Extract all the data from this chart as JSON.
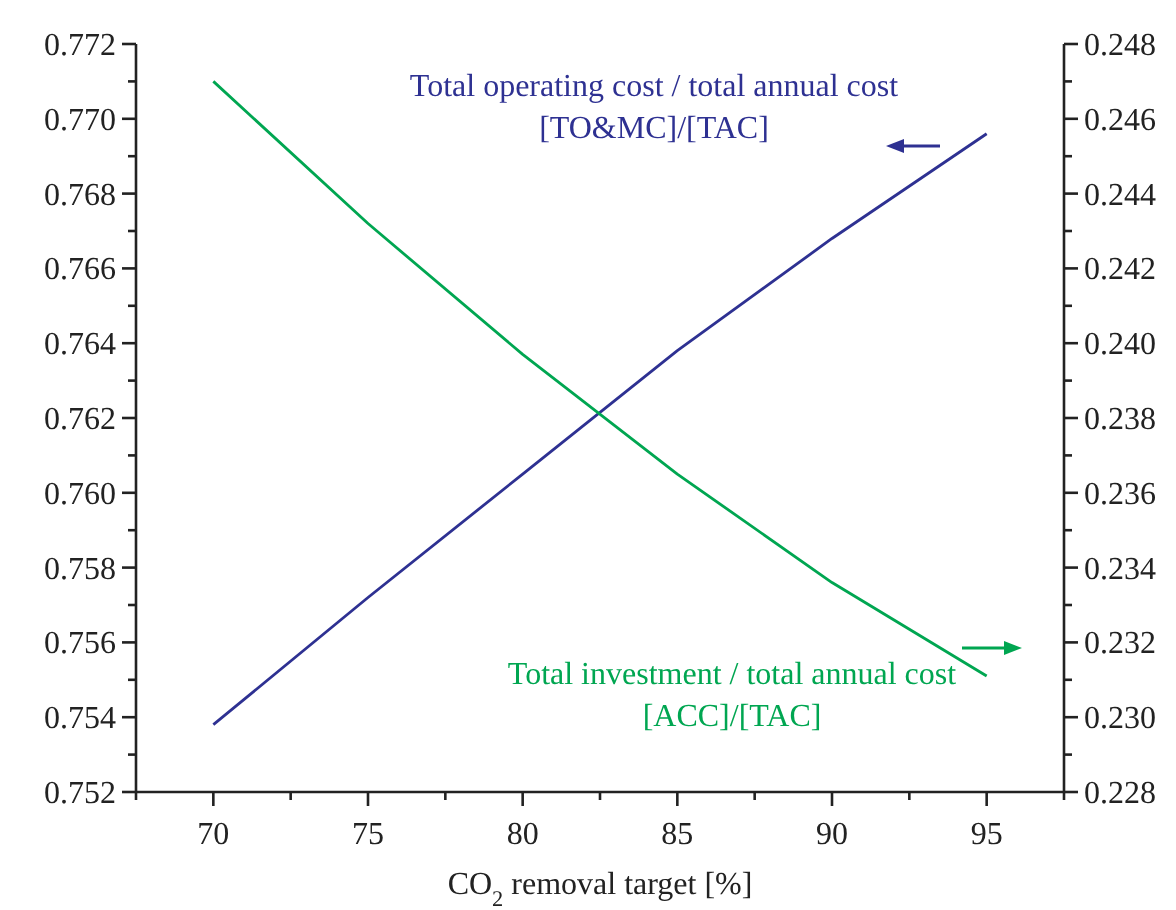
{
  "chart_data": {
    "type": "line",
    "xlabel": "CO$_{2}$ removal target [%]",
    "x": [
      70,
      75,
      80,
      85,
      90,
      95
    ],
    "series": [
      {
        "color": "#2e3192",
        "values": [
          0.7538,
          0.7572,
          0.7605,
          0.7638,
          0.7668,
          0.7696
        ]
      },
      {
        "color": "#00a651",
        "axis": "y2",
        "values": [
          0.247,
          0.2432,
          0.2397,
          0.2365,
          0.2336,
          0.2311
        ]
      }
    ],
    "xlim": [
      67.5,
      97.5
    ],
    "xticks": [
      {
        "value": 67.5,
        "label": null
      },
      70,
      {
        "value": 72.5,
        "label": null
      },
      75,
      {
        "value": 77.5,
        "label": null
      },
      80,
      {
        "value": 82.5,
        "label": null
      },
      85,
      {
        "value": 87.5,
        "label": null
      },
      90,
      {
        "value": 92.5,
        "label": null
      },
      95,
      {
        "value": 97.5,
        "label": null
      }
    ],
    "ylim": [
      0.752,
      0.772
    ],
    "yticks": [
      {
        "value": 0.752,
        "label": "0.752"
      },
      {
        "value": 0.753,
        "label": null
      },
      {
        "value": 0.754,
        "label": "0.754"
      },
      {
        "value": 0.755,
        "label": null
      },
      {
        "value": 0.756,
        "label": "0.756"
      },
      {
        "value": 0.757,
        "label": null
      },
      {
        "value": 0.758,
        "label": "0.758"
      },
      {
        "value": 0.759,
        "label": null
      },
      {
        "value": 0.76,
        "label": "0.760"
      },
      {
        "value": 0.761,
        "label": null
      },
      {
        "value": 0.762,
        "label": "0.762"
      },
      {
        "value": 0.763,
        "label": null
      },
      {
        "value": 0.764,
        "label": "0.764"
      },
      {
        "value": 0.765,
        "label": null
      },
      {
        "value": 0.766,
        "label": "0.766"
      },
      {
        "value": 0.767,
        "label": null
      },
      {
        "value": 0.768,
        "label": "0.768"
      },
      {
        "value": 0.769,
        "label": null
      },
      {
        "value": 0.77,
        "label": "0.770"
      },
      {
        "value": 0.771,
        "label": null
      },
      {
        "value": 0.772,
        "label": "0.772"
      }
    ],
    "y2lim": [
      0.228,
      0.248
    ],
    "y2ticks": [
      {
        "value": 0.228,
        "label": "0.228"
      },
      {
        "value": 0.229,
        "label": null
      },
      {
        "value": 0.23,
        "label": "0.230"
      },
      {
        "value": 0.231,
        "label": null
      },
      {
        "value": 0.232,
        "label": "0.232"
      },
      {
        "value": 0.233,
        "label": null
      },
      {
        "value": 0.234,
        "label": "0.234"
      },
      {
        "value": 0.235,
        "label": null
      },
      {
        "value": 0.236,
        "label": "0.236"
      },
      {
        "value": 0.237,
        "label": null
      },
      {
        "value": 0.238,
        "label": "0.238"
      },
      {
        "value": 0.239,
        "label": null
      },
      {
        "value": 0.24,
        "label": "0.240"
      },
      {
        "value": 0.241,
        "label": null
      },
      {
        "value": 0.242,
        "label": "0.242"
      },
      {
        "value": 0.243,
        "label": null
      },
      {
        "value": 0.244,
        "label": "0.244"
      },
      {
        "value": 0.245,
        "label": null
      },
      {
        "value": 0.246,
        "label": "0.246"
      },
      {
        "value": 0.247,
        "label": null
      },
      {
        "value": 0.248,
        "label": "0.248"
      }
    ],
    "annotations": [
      "Total operating cost / total annual cost\n[TO&MC]/[TAC]",
      "Total investment / total annual cost\n[ACC]/[TAC]"
    ],
    "grid": false,
    "marker": "none",
    "line_style": "solid"
  }
}
